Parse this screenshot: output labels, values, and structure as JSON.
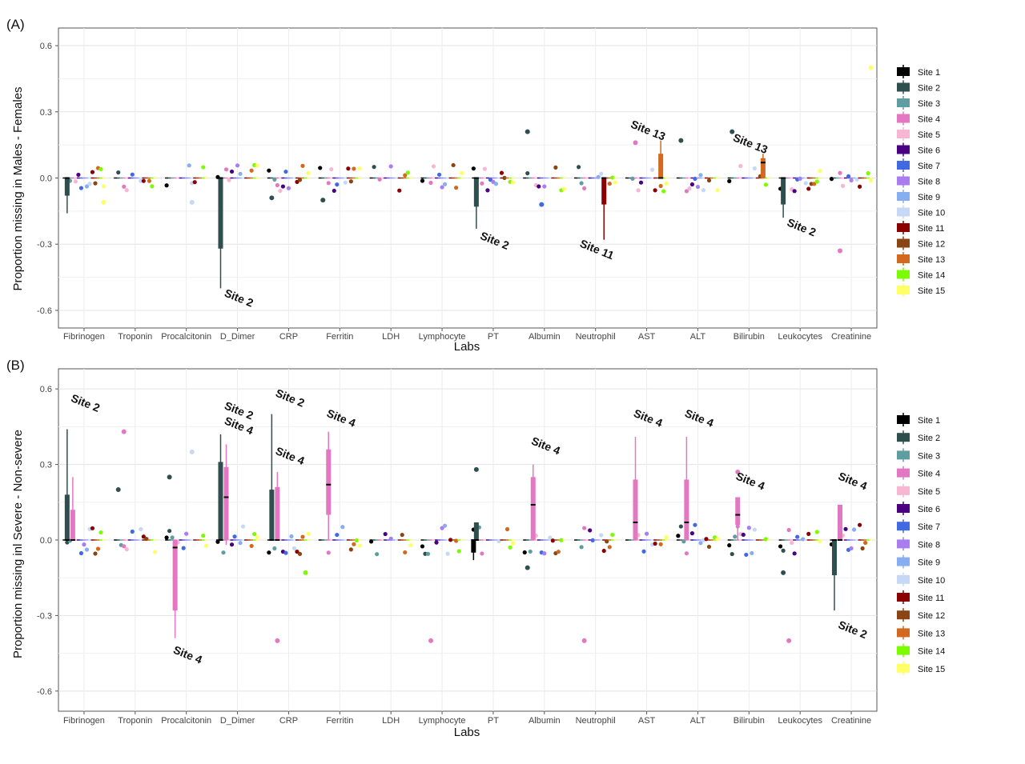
{
  "panels": [
    {
      "label": "(A)",
      "ylabel": "Proportion missing in Males - Females",
      "xlabel": "Labs",
      "ylim": [
        -0.68,
        0.68
      ],
      "yticks": [
        -0.6,
        -0.3,
        0.0,
        0.3,
        0.6
      ],
      "ytick_labels": [
        "-0.6",
        "-0.3",
        "0.0",
        "0.3",
        "0.6"
      ]
    },
    {
      "label": "(B)",
      "ylabel": "Proportion missing inl Severe - Non-severe",
      "xlabel": "Labs",
      "ylim": [
        -0.68,
        0.68
      ],
      "yticks": [
        -0.6,
        -0.3,
        0.0,
        0.3,
        0.6
      ],
      "ytick_labels": [
        "-0.6",
        "-0.3",
        "0.0",
        "0.3",
        "0.6"
      ]
    }
  ],
  "chart_data": [
    {
      "type": "boxplot",
      "panel": "(A)",
      "ylabel": "Proportion missing in Males - Females",
      "xlabel": "Labs",
      "categories": [
        "Fibrinogen",
        "Troponin",
        "Procalcitonin",
        "D_Dimer",
        "CRP",
        "Ferritin",
        "LDH",
        "Lymphocyte",
        "PT",
        "Albumin",
        "Neutrophil",
        "AST",
        "ALT",
        "Bilirubin",
        "Leukocytes",
        "Creatinine"
      ],
      "ylim": [
        -0.68,
        0.68
      ],
      "grid": true,
      "legend_position": "right",
      "boxes": [
        {
          "lab": "Fibrinogen",
          "site": "Site 2",
          "q1": -0.08,
          "median": 0.0,
          "q3": 0.0,
          "low": -0.16,
          "high": 0.0
        },
        {
          "lab": "D_Dimer",
          "site": "Site 2",
          "q1": -0.32,
          "median": 0.0,
          "q3": 0.0,
          "low": -0.5,
          "high": 0.0
        },
        {
          "lab": "PT",
          "site": "Site 2",
          "q1": -0.13,
          "median": 0.0,
          "q3": 0.0,
          "low": -0.23,
          "high": 0.0
        },
        {
          "lab": "Neutrophil",
          "site": "Site 11",
          "q1": -0.12,
          "median": 0.0,
          "q3": 0.0,
          "low": -0.28,
          "high": 0.0
        },
        {
          "lab": "AST",
          "site": "Site 13",
          "q1": 0.0,
          "median": 0.0,
          "q3": 0.11,
          "low": 0.0,
          "high": 0.17
        },
        {
          "lab": "Bilirubin",
          "site": "Site 13",
          "q1": 0.0,
          "median": 0.07,
          "q3": 0.09,
          "low": 0.0,
          "high": 0.11
        },
        {
          "lab": "Leukocytes",
          "site": "Site 2",
          "q1": -0.12,
          "median": 0.0,
          "q3": 0.0,
          "low": -0.18,
          "high": 0.0
        }
      ],
      "outliers": [
        {
          "lab": "Albumin",
          "site": "Site 2",
          "value": 0.21
        },
        {
          "lab": "Bilirubin",
          "site": "Site 2",
          "value": 0.21
        },
        {
          "lab": "AST",
          "site": "Site 4",
          "value": 0.16
        },
        {
          "lab": "ALT",
          "site": "Site 2",
          "value": 0.17
        },
        {
          "lab": "Creatinine",
          "site": "Site 4",
          "value": -0.33
        },
        {
          "lab": "Creatinine",
          "site": "Site 15",
          "value": 0.5
        },
        {
          "lab": "Fibrinogen",
          "site": "Site 15",
          "value": -0.11
        },
        {
          "lab": "Procalcitonin",
          "site": "Site 10",
          "value": -0.11
        },
        {
          "lab": "CRP",
          "site": "Site 2",
          "value": -0.09
        },
        {
          "lab": "Ferritin",
          "site": "Site 2",
          "value": -0.1
        },
        {
          "lab": "Albumin",
          "site": "Site 7",
          "value": -0.12
        }
      ],
      "annotations": [
        {
          "text": "Site 2",
          "lab": "D_Dimer",
          "value": -0.56
        },
        {
          "text": "Site 2",
          "lab": "PT",
          "value": -0.3
        },
        {
          "text": "Site 11",
          "lab": "Neutrophil",
          "value": -0.34
        },
        {
          "text": "Site 13",
          "lab": "AST",
          "value": 0.2
        },
        {
          "text": "Site 13",
          "lab": "Bilirubin",
          "value": 0.14
        },
        {
          "text": "Site 2",
          "lab": "Leukocytes",
          "value": -0.24
        }
      ]
    },
    {
      "type": "boxplot",
      "panel": "(B)",
      "ylabel": "Proportion missing inl Severe - Non-severe",
      "xlabel": "Labs",
      "categories": [
        "Fibrinogen",
        "Troponin",
        "Procalcitonin",
        "D_Dimer",
        "CRP",
        "Ferritin",
        "LDH",
        "Lymphocyte",
        "PT",
        "Albumin",
        "Neutrophil",
        "AST",
        "ALT",
        "Bilirubin",
        "Leukocytes",
        "Creatinine"
      ],
      "ylim": [
        -0.68,
        0.68
      ],
      "grid": true,
      "legend_position": "right",
      "boxes": [
        {
          "lab": "Fibrinogen",
          "site": "Site 2",
          "q1": 0.0,
          "median": 0.0,
          "q3": 0.18,
          "low": 0.0,
          "high": 0.44
        },
        {
          "lab": "Fibrinogen",
          "site": "Site 4",
          "q1": 0.0,
          "median": 0.0,
          "q3": 0.12,
          "low": 0.0,
          "high": 0.25
        },
        {
          "lab": "Procalcitonin",
          "site": "Site 4",
          "q1": -0.28,
          "median": -0.03,
          "q3": 0.0,
          "low": -0.39,
          "high": 0.0
        },
        {
          "lab": "D_Dimer",
          "site": "Site 2",
          "q1": 0.0,
          "median": 0.0,
          "q3": 0.31,
          "low": 0.0,
          "high": 0.42
        },
        {
          "lab": "D_Dimer",
          "site": "Site 4",
          "q1": 0.0,
          "median": 0.17,
          "q3": 0.29,
          "low": -0.02,
          "high": 0.38
        },
        {
          "lab": "CRP",
          "site": "Site 2",
          "q1": 0.0,
          "median": 0.0,
          "q3": 0.2,
          "low": 0.0,
          "high": 0.5
        },
        {
          "lab": "CRP",
          "site": "Site 4",
          "q1": 0.0,
          "median": 0.0,
          "q3": 0.21,
          "low": 0.0,
          "high": 0.27
        },
        {
          "lab": "Ferritin",
          "site": "Site 4",
          "q1": 0.1,
          "median": 0.22,
          "q3": 0.36,
          "low": 0.0,
          "high": 0.43
        },
        {
          "lab": "Albumin",
          "site": "Site 4",
          "q1": 0.0,
          "median": 0.14,
          "q3": 0.25,
          "low": 0.0,
          "high": 0.3
        },
        {
          "lab": "AST",
          "site": "Site 4",
          "q1": 0.0,
          "median": 0.07,
          "q3": 0.24,
          "low": 0.0,
          "high": 0.41
        },
        {
          "lab": "ALT",
          "site": "Site 4",
          "q1": 0.0,
          "median": 0.07,
          "q3": 0.24,
          "low": 0.0,
          "high": 0.41
        },
        {
          "lab": "Bilirubin",
          "site": "Site 4",
          "q1": 0.06,
          "median": 0.1,
          "q3": 0.17,
          "low": 0.0,
          "high": 0.17
        },
        {
          "lab": "Creatinine",
          "site": "Site 4",
          "q1": 0.0,
          "median": 0.0,
          "q3": 0.14,
          "low": 0.0,
          "high": 0.14
        },
        {
          "lab": "Creatinine",
          "site": "Site 2",
          "q1": -0.14,
          "median": 0.0,
          "q3": 0.0,
          "low": -0.28,
          "high": 0.0
        },
        {
          "lab": "PT",
          "site": "Site 1",
          "q1": -0.05,
          "median": 0.0,
          "q3": 0.0,
          "low": -0.08,
          "high": 0.0
        },
        {
          "lab": "PT",
          "site": "Site 2",
          "q1": 0.0,
          "median": 0.0,
          "q3": 0.07,
          "low": 0.0,
          "high": 0.07
        }
      ],
      "outliers": [
        {
          "lab": "Troponin",
          "site": "Site 4",
          "value": 0.43
        },
        {
          "lab": "Procalcitonin",
          "site": "Site 10",
          "value": 0.35
        },
        {
          "lab": "Troponin",
          "site": "Site 2",
          "value": 0.2
        },
        {
          "lab": "Procalcitonin",
          "site": "Site 2",
          "value": 0.25
        },
        {
          "lab": "CRP",
          "site": "Site 4",
          "value": -0.4
        },
        {
          "lab": "Lymphocyte",
          "site": "Site 4",
          "value": -0.4
        },
        {
          "lab": "Neutrophil",
          "site": "Site 4",
          "value": -0.4
        },
        {
          "lab": "Leukocytes",
          "site": "Site 4",
          "value": -0.4
        },
        {
          "lab": "PT",
          "site": "Site 2",
          "value": 0.28
        },
        {
          "lab": "Bilirubin",
          "site": "Site 4",
          "value": 0.27
        },
        {
          "lab": "CRP",
          "site": "Site 14",
          "value": -0.13
        },
        {
          "lab": "Leukocytes",
          "site": "Site 2",
          "value": -0.13
        },
        {
          "lab": "Albumin",
          "site": "Site 2",
          "value": -0.11
        }
      ],
      "annotations": [
        {
          "text": "Site 2",
          "lab": "Fibrinogen",
          "value": 0.53
        },
        {
          "text": "Site 4",
          "lab": "Procalcitonin",
          "value": -0.47
        },
        {
          "text": "Site 2",
          "lab": "D_Dimer",
          "value": 0.5
        },
        {
          "text": "Site 4",
          "lab": "D_Dimer",
          "value": 0.44
        },
        {
          "text": "Site 2",
          "lab": "CRP",
          "value": 0.55
        },
        {
          "text": "Site 4",
          "lab": "CRP",
          "value": 0.32
        },
        {
          "text": "Site 4",
          "lab": "Ferritin",
          "value": 0.47
        },
        {
          "text": "Site 4",
          "lab": "Albumin",
          "value": 0.36
        },
        {
          "text": "Site 4",
          "lab": "AST",
          "value": 0.47
        },
        {
          "text": "Site 4",
          "lab": "ALT",
          "value": 0.47
        },
        {
          "text": "Site 4",
          "lab": "Bilirubin",
          "value": 0.22
        },
        {
          "text": "Site 4",
          "lab": "Creatinine",
          "value": 0.22
        },
        {
          "text": "Site 2",
          "lab": "Creatinine",
          "value": -0.37
        }
      ]
    }
  ],
  "legend": {
    "entries": [
      {
        "name": "Site 1",
        "color": "#000000"
      },
      {
        "name": "Site 2",
        "color": "#2f4f4f"
      },
      {
        "name": "Site 3",
        "color": "#5f9ea0"
      },
      {
        "name": "Site 4",
        "color": "#e377c2"
      },
      {
        "name": "Site 5",
        "color": "#f7b6d2"
      },
      {
        "name": "Site 6",
        "color": "#4b0082"
      },
      {
        "name": "Site 7",
        "color": "#4169e1"
      },
      {
        "name": "Site 8",
        "color": "#a97cf0"
      },
      {
        "name": "Site 9",
        "color": "#87aef0"
      },
      {
        "name": "Site 10",
        "color": "#c6d8f5"
      },
      {
        "name": "Site 11",
        "color": "#8b0000"
      },
      {
        "name": "Site 12",
        "color": "#8b4513"
      },
      {
        "name": "Site 13",
        "color": "#d2691e"
      },
      {
        "name": "Site 14",
        "color": "#7cfc00"
      },
      {
        "name": "Site 15",
        "color": "#ffff66"
      }
    ]
  }
}
